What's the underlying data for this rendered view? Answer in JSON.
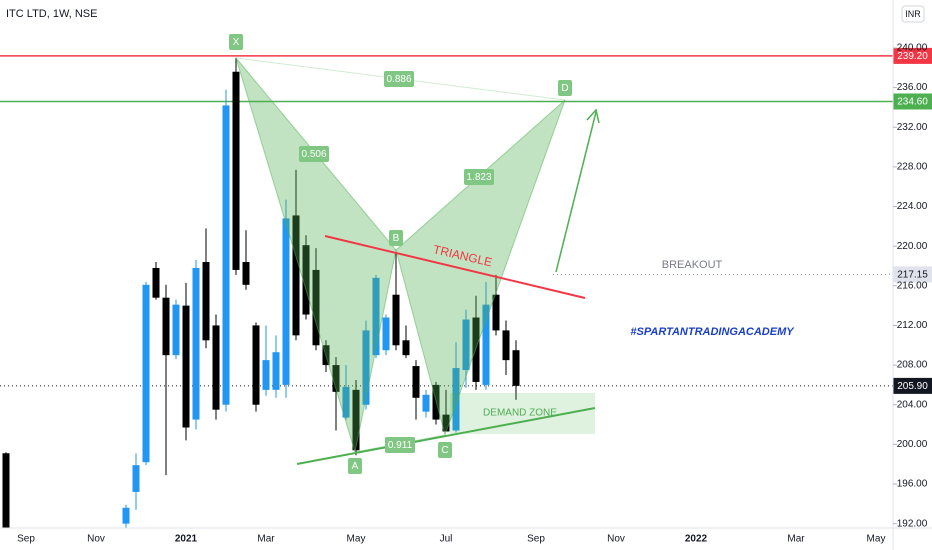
{
  "chart_data": {
    "type": "candlestick",
    "title": "ITC LTD, 1W, NSE",
    "currency": "INR",
    "categories": [
      null,
      null,
      "Sep",
      null,
      null,
      null,
      null,
      null,
      null,
      "Nov",
      null,
      null,
      null,
      null,
      null,
      null,
      null,
      null,
      "2021",
      null,
      null,
      null,
      null,
      null,
      null,
      null,
      "Mar",
      null,
      null,
      null,
      null,
      null,
      null,
      null,
      null,
      "May",
      null,
      null,
      null,
      null,
      null,
      null,
      null,
      null,
      "Jul",
      null,
      null,
      null,
      null,
      null,
      null,
      null,
      null,
      "Sep",
      null,
      null,
      null,
      null,
      null,
      null,
      null,
      "Nov",
      null,
      null,
      null,
      null,
      null,
      null,
      null,
      "2022",
      null,
      null,
      null,
      null,
      null,
      null,
      null,
      null,
      null,
      "Mar",
      null,
      null,
      null,
      null,
      null,
      null,
      null,
      "May",
      null
    ],
    "open": [
      199.1,
      null,
      null,
      null,
      null,
      null,
      null,
      null,
      null,
      null,
      null,
      null,
      192.0,
      195.2,
      198.2,
      217.8,
      214.8,
      209.0,
      214.0,
      202.5,
      218.4,
      212.0,
      204.0,
      237.6,
      218.4,
      212.0,
      205.5,
      205.5,
      206.0,
      223.1,
      220.1,
      217.6,
      210.0,
      208.0,
      202.7,
      205.5,
      204.0,
      209.0,
      209.5,
      215.1,
      210.5,
      207.9,
      203.3,
      206.0,
      203.0,
      201.4,
      207.5,
      212.8,
      206.0,
      215.1,
      211.5,
      209.5,
      null,
      null,
      null,
      null,
      null,
      null,
      null,
      null,
      null,
      null,
      null,
      null,
      null,
      null,
      null,
      null,
      null,
      null,
      null,
      null,
      null,
      null,
      null,
      null,
      null,
      null,
      null,
      null,
      null,
      null,
      null,
      null,
      null,
      null,
      null,
      null,
      null
    ],
    "high": [
      199.2,
      null,
      null,
      null,
      null,
      null,
      null,
      null,
      null,
      null,
      null,
      null,
      193.9,
      199.1,
      216.4,
      218.4,
      216.1,
      214.6,
      216.3,
      218.6,
      221.8,
      213.1,
      235.8,
      239.0,
      221.6,
      212.3,
      212.0,
      211.0,
      224.7,
      227.7,
      221.1,
      219.8,
      210.5,
      208.8,
      208.0,
      206.5,
      212.5,
      217.1,
      213.1,
      219.4,
      212.0,
      208.5,
      205.5,
      206.3,
      205.5,
      210.3,
      213.6,
      215.0,
      216.4,
      217.1,
      212.5,
      210.5,
      null,
      null,
      null,
      null,
      null,
      null,
      null,
      null,
      null,
      null,
      null,
      null,
      null,
      null,
      null,
      null,
      null,
      null,
      null,
      null,
      null,
      null,
      null,
      null,
      null,
      null,
      null,
      null,
      null,
      null,
      null,
      null,
      null,
      null,
      null,
      null,
      null
    ],
    "low": [
      191.6,
      null,
      null,
      null,
      null,
      null,
      null,
      null,
      null,
      null,
      null,
      null,
      191.6,
      193.4,
      197.9,
      214.6,
      196.9,
      208.6,
      200.4,
      201.5,
      209.7,
      202.5,
      203.3,
      217.1,
      215.6,
      203.3,
      204.9,
      204.7,
      204.7,
      210.5,
      212.6,
      209.5,
      207.3,
      201.4,
      202.5,
      198.9,
      203.5,
      208.7,
      209.0,
      209.5,
      208.7,
      202.5,
      202.7,
      202.0,
      201.3,
      201.2,
      205.7,
      205.5,
      205.5,
      211.0,
      207.0,
      204.5,
      null,
      null,
      null,
      null,
      null,
      null,
      null,
      null,
      null,
      null,
      null,
      null,
      null,
      null,
      null,
      null,
      null,
      null,
      null,
      null,
      null,
      null,
      null,
      null,
      null,
      null,
      null,
      null,
      null,
      null,
      null,
      null,
      null,
      null,
      null,
      null,
      null
    ],
    "close": [
      191.6,
      null,
      null,
      null,
      null,
      null,
      null,
      null,
      null,
      null,
      null,
      null,
      193.6,
      197.9,
      216.1,
      214.8,
      209.0,
      214.1,
      201.7,
      217.8,
      210.5,
      203.5,
      234.2,
      217.6,
      216.1,
      204.0,
      208.5,
      209.3,
      222.8,
      211.0,
      213.1,
      210.0,
      208.0,
      205.3,
      205.8,
      199.4,
      211.5,
      216.8,
      212.8,
      210.0,
      209.0,
      204.7,
      205.0,
      202.5,
      201.3,
      207.7,
      212.6,
      206.3,
      214.1,
      211.5,
      208.5,
      205.9,
      null,
      null,
      null,
      null,
      null,
      null,
      null,
      null,
      null,
      null,
      null,
      null,
      null,
      null,
      null,
      null,
      null,
      null,
      null,
      null,
      null,
      null,
      null,
      null,
      null,
      null,
      null,
      null,
      null,
      null,
      null,
      null,
      null,
      null,
      null,
      null,
      null
    ],
    "up_color": "#2196f3",
    "down_color": "#000000",
    "ylim": [
      191.56,
      244.84
    ],
    "yticks": [
      {
        "value": 192,
        "label": "192.00"
      },
      {
        "value": 196,
        "label": "196.00"
      },
      {
        "value": 200,
        "label": "200.00"
      },
      {
        "value": 204,
        "label": "204.00"
      },
      {
        "value": 208,
        "label": "208.00"
      },
      {
        "value": 212,
        "label": "212.00"
      },
      {
        "value": 216,
        "label": "216.00"
      },
      {
        "value": 220,
        "label": "220.00"
      },
      {
        "value": 224,
        "label": "224.00"
      },
      {
        "value": 228,
        "label": "228.00"
      },
      {
        "value": 232,
        "label": "232.00"
      },
      {
        "value": 236,
        "label": "236.00"
      },
      {
        "value": 240,
        "label": "240.00"
      }
    ],
    "grid": false,
    "price_lines": [
      {
        "value": 239.2,
        "label": "239.20",
        "color": "#f23645",
        "style": "solid"
      },
      {
        "value": 234.6,
        "label": "234.60",
        "color": "#4caf50",
        "style": "solid"
      },
      {
        "value": 217.15,
        "label": "217.15",
        "color": "#9598a1",
        "style": "dotted"
      },
      {
        "value": 205.9,
        "label": "205.90",
        "color": "#131722",
        "style": "dotted"
      }
    ],
    "pattern_points": [
      "X",
      "A",
      "B",
      "C",
      "D"
    ],
    "pattern_ratios": [
      0.886,
      0.506,
      1.823,
      0.911
    ],
    "annotations": {
      "triangle": "TRIANGLE",
      "breakout": "BREAKOUT",
      "demand": "DEMAND ZONE",
      "brand": "#SPARTANTRADINGACADEMY"
    }
  }
}
